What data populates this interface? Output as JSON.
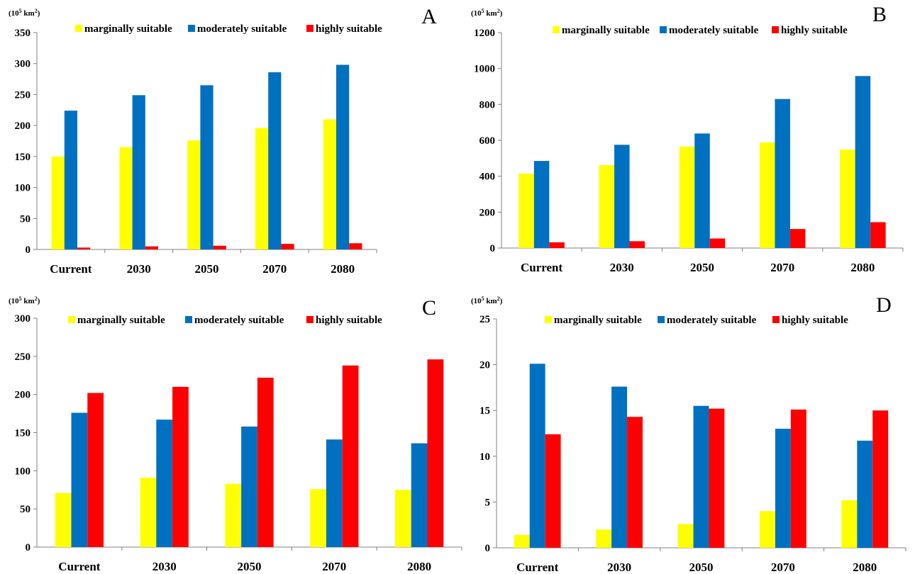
{
  "legend_labels": [
    "marginally suitable",
    "moderately suitable",
    "highly suitable"
  ],
  "colors": {
    "marginally": "#ffff00",
    "moderately": "#0070c0",
    "highly": "#ff0000"
  },
  "chart_data": [
    {
      "panel": "A",
      "type": "bar",
      "unit": "(10",
      "unit_exp": "5",
      "unit_tail": " km",
      "unit_sq": "2",
      "unit_close": ")",
      "categories": [
        "Current",
        "2030",
        "2050",
        "2070",
        "2080"
      ],
      "ylim": [
        0,
        350
      ],
      "yticks": [
        0,
        50,
        100,
        150,
        200,
        250,
        300,
        350
      ],
      "series": [
        {
          "name": "marginally suitable",
          "color": "#ffff00",
          "values": [
            150,
            165,
            176,
            196,
            210
          ]
        },
        {
          "name": "moderately suitable",
          "color": "#0070c0",
          "values": [
            224,
            249,
            265,
            286,
            298
          ]
        },
        {
          "name": "highly suitable",
          "color": "#ff0000",
          "values": [
            3,
            5,
            6,
            9,
            10
          ]
        }
      ]
    },
    {
      "panel": "B",
      "type": "bar",
      "unit": "(10",
      "unit_exp": "5",
      "unit_tail": " km",
      "unit_sq": "2",
      "unit_close": ")",
      "categories": [
        "Current",
        "2030",
        "2050",
        "2070",
        "2080"
      ],
      "ylim": [
        0,
        1200
      ],
      "yticks": [
        0,
        200,
        400,
        600,
        800,
        1000,
        1200
      ],
      "series": [
        {
          "name": "marginally suitable",
          "color": "#ffff00",
          "values": [
            415,
            462,
            565,
            588,
            548
          ]
        },
        {
          "name": "moderately suitable",
          "color": "#0070c0",
          "values": [
            485,
            575,
            638,
            830,
            958
          ]
        },
        {
          "name": "highly suitable",
          "color": "#ff0000",
          "values": [
            32,
            38,
            53,
            106,
            144
          ]
        }
      ]
    },
    {
      "panel": "C",
      "type": "bar",
      "unit": "(10",
      "unit_exp": "5",
      "unit_tail": " km",
      "unit_sq": "2",
      "unit_close": ")",
      "categories": [
        "Current",
        "2030",
        "2050",
        "2070",
        "2080"
      ],
      "ylim": [
        0,
        300
      ],
      "yticks": [
        0,
        50,
        100,
        150,
        200,
        250,
        300
      ],
      "series": [
        {
          "name": "marginally suitable",
          "color": "#ffff00",
          "values": [
            71,
            91,
            83,
            76,
            75
          ]
        },
        {
          "name": "moderately suitable",
          "color": "#0070c0",
          "values": [
            176,
            167,
            158,
            141,
            136
          ]
        },
        {
          "name": "highly suitable",
          "color": "#ff0000",
          "values": [
            202,
            210,
            222,
            238,
            246
          ]
        }
      ]
    },
    {
      "panel": "D",
      "type": "bar",
      "unit": "(10",
      "unit_exp": "5",
      "unit_tail": " km",
      "unit_sq": "2",
      "unit_close": ")",
      "categories": [
        "Current",
        "2030",
        "2050",
        "2070",
        "2080"
      ],
      "ylim": [
        0,
        25
      ],
      "yticks": [
        0,
        5,
        10,
        15,
        20,
        25
      ],
      "series": [
        {
          "name": "marginally suitable",
          "color": "#ffff00",
          "values": [
            1.4,
            2.0,
            2.6,
            4.0,
            5.2
          ]
        },
        {
          "name": "moderately suitable",
          "color": "#0070c0",
          "values": [
            20.1,
            17.6,
            15.5,
            13.0,
            11.7
          ]
        },
        {
          "name": "highly suitable",
          "color": "#ff0000",
          "values": [
            12.4,
            14.3,
            15.2,
            15.1,
            15.0
          ]
        }
      ]
    }
  ]
}
